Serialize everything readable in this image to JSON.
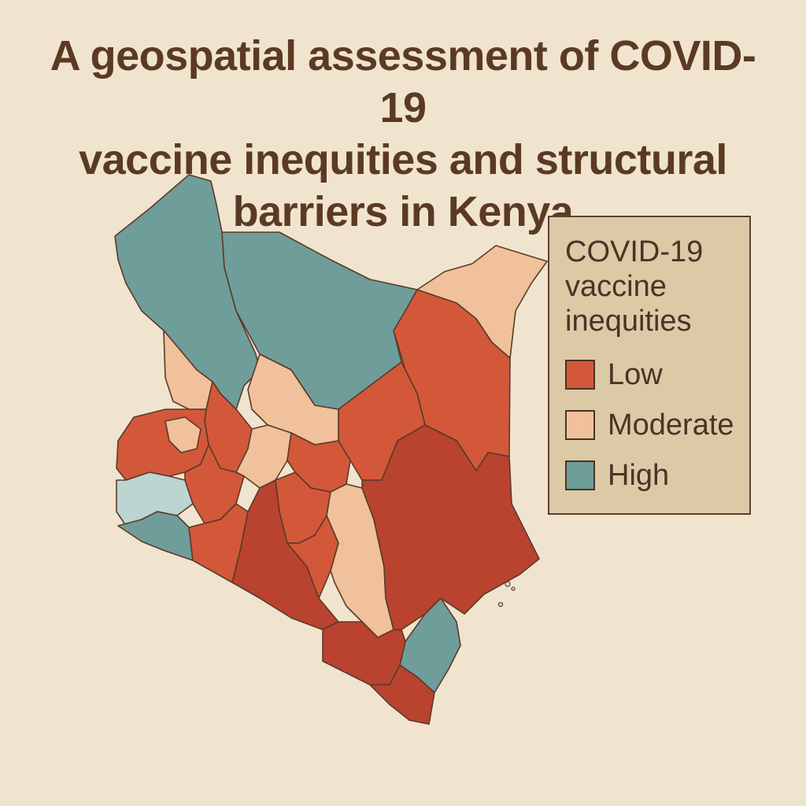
{
  "title": {
    "line1": "A geospatial assessment of COVID-19",
    "line2": "vaccine inequities and structural",
    "line3": "barriers in Kenya"
  },
  "legend": {
    "title_line1": "COVID-19",
    "title_line2": "vaccine",
    "title_line3": "inequities",
    "items": [
      {
        "label": "Low",
        "color": "#d3583a"
      },
      {
        "label": "Moderate",
        "color": "#f0c19a"
      },
      {
        "label": "High",
        "color": "#6f9d9a"
      }
    ]
  },
  "colors": {
    "low": "#d3583a",
    "low_dark": "#b9432f",
    "moderate": "#f0c19a",
    "high": "#6f9d9a",
    "high_light": "#bcd4d2",
    "border": "#5b3a2a",
    "background": "#f1e4cf"
  }
}
